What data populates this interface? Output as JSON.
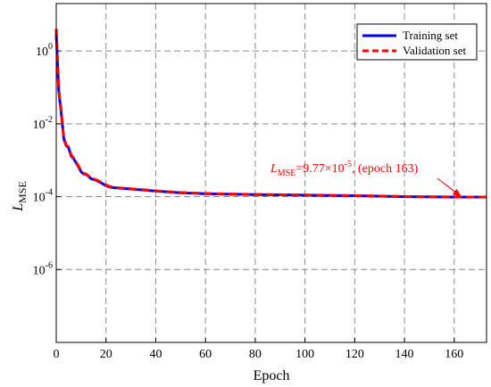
{
  "chart_data": {
    "type": "line",
    "xlabel": "Epoch",
    "ylabel": "L",
    "ylabel_sub": "MSE",
    "xlim": [
      0,
      173
    ],
    "ylim_log10": [
      -8,
      1.3
    ],
    "yscale": "log",
    "grid": true,
    "x_ticks": [
      0,
      20,
      40,
      60,
      80,
      100,
      120,
      140,
      160
    ],
    "x_tick_labels": [
      "0",
      "20",
      "40",
      "60",
      "80",
      "100",
      "120",
      "140",
      "160"
    ],
    "y_ticks": [
      {
        "value": 1,
        "base": "10",
        "exp": "0"
      },
      {
        "value": 0.01,
        "base": "10",
        "exp": "-2"
      },
      {
        "value": 0.0001,
        "base": "10",
        "exp": "-4"
      },
      {
        "value": 1e-06,
        "base": "10",
        "exp": "-6"
      }
    ],
    "legend_position": "top-right",
    "series": [
      {
        "name": "Training set",
        "color": "#0000ff",
        "style": "solid",
        "x": [
          0,
          0.5,
          1,
          2,
          3,
          4,
          5,
          6,
          7,
          8,
          9,
          10,
          11,
          12,
          13,
          14,
          15,
          16,
          17,
          18,
          19,
          20,
          22,
          25,
          30,
          35,
          40,
          50,
          60,
          70,
          80,
          90,
          100,
          110,
          120,
          130,
          140,
          150,
          160,
          163,
          173
        ],
        "y": [
          3.0,
          0.5,
          0.08,
          0.02,
          0.004,
          0.0025,
          0.0022,
          0.0013,
          0.0011,
          0.00085,
          0.00065,
          0.00048,
          0.00042,
          0.00041,
          0.00036,
          0.00031,
          0.0003,
          0.00028,
          0.00026,
          0.00024,
          0.00022,
          0.0002,
          0.00018,
          0.000172,
          0.000162,
          0.000152,
          0.000143,
          0.000128,
          0.000121,
          0.000117,
          0.000114,
          0.000112,
          0.00011,
          0.000108,
          0.000106,
          0.000103,
          0.0001,
          9.85e-05,
          9.78e-05,
          9.77e-05,
          9.75e-05
        ]
      },
      {
        "name": "Validation set",
        "color": "#ff0000",
        "style": "dashed",
        "x": [
          0,
          0.5,
          1,
          2,
          3,
          4,
          5,
          6,
          7,
          8,
          9,
          10,
          11,
          12,
          13,
          14,
          15,
          16,
          17,
          18,
          19,
          20,
          22,
          25,
          30,
          35,
          40,
          50,
          60,
          70,
          80,
          90,
          100,
          110,
          120,
          130,
          140,
          150,
          160,
          163,
          173
        ],
        "y": [
          4.0,
          0.55,
          0.09,
          0.022,
          0.0042,
          0.0026,
          0.0023,
          0.0014,
          0.00115,
          0.0009,
          0.00068,
          0.0005,
          0.00044,
          0.00042,
          0.00037,
          0.00032,
          0.00031,
          0.00029,
          0.00027,
          0.00025,
          0.00023,
          0.00021,
          0.000185,
          0.000175,
          0.000165,
          0.000155,
          0.000145,
          0.00013,
          0.000122,
          0.000118,
          0.000115,
          0.000113,
          0.000111,
          0.000109,
          0.000107,
          0.000104,
          0.000101,
          9.88e-05,
          9.8e-05,
          9.78e-05,
          9.76e-05
        ]
      }
    ],
    "annotation": {
      "prefix": "L",
      "sub": "MSE",
      "mid": "=9.77×10",
      "exp": "-5",
      "suffix": ", (epoch 163)",
      "color": "#ff0000",
      "point": {
        "x": 163,
        "y": 9.77e-05
      }
    }
  }
}
